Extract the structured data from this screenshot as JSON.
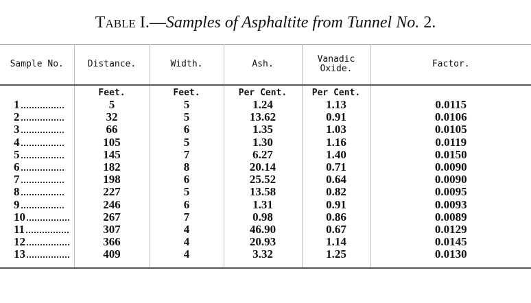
{
  "title": {
    "label": "Table I.—",
    "text": "Samples of Asphaltite from Tunnel No.",
    "number": "2."
  },
  "table": {
    "columns": [
      {
        "header": "Sample No."
      },
      {
        "header": "Distance.",
        "unit": "Feet."
      },
      {
        "header": "Width.",
        "unit": "Feet."
      },
      {
        "header": "Ash.",
        "unit": "Per Cent."
      },
      {
        "header": "Vanadic Oxide.",
        "unit": "Per Cent."
      },
      {
        "header": "Factor."
      }
    ],
    "rows": [
      [
        "1",
        "5",
        "5",
        "1.24",
        "1.13",
        "0.0115"
      ],
      [
        "2",
        "32",
        "5",
        "13.62",
        "0.91",
        "0.0106"
      ],
      [
        "3",
        "66",
        "6",
        "1.35",
        "1.03",
        "0.0105"
      ],
      [
        "4",
        "105",
        "5",
        "1.30",
        "1.16",
        "0.0119"
      ],
      [
        "5",
        "145",
        "7",
        "6.27",
        "1.40",
        "0.0150"
      ],
      [
        "6",
        "182",
        "8",
        "20.14",
        "0.71",
        "0.0090"
      ],
      [
        "7",
        "198",
        "6",
        "25.52",
        "0.64",
        "0.0090"
      ],
      [
        "8",
        "227",
        "5",
        "13.58",
        "0.82",
        "0.0095"
      ],
      [
        "9",
        "246",
        "6",
        "1.31",
        "0.91",
        "0.0093"
      ],
      [
        "10",
        "267",
        "7",
        "0.98",
        "0.86",
        "0.0089"
      ],
      [
        "11",
        "307",
        "4",
        "46.90",
        "0.67",
        "0.0129"
      ],
      [
        "12",
        "366",
        "4",
        "20.93",
        "1.14",
        "0.0145"
      ],
      [
        "13",
        "409",
        "4",
        "3.32",
        "1.25",
        "0.0130"
      ]
    ]
  }
}
